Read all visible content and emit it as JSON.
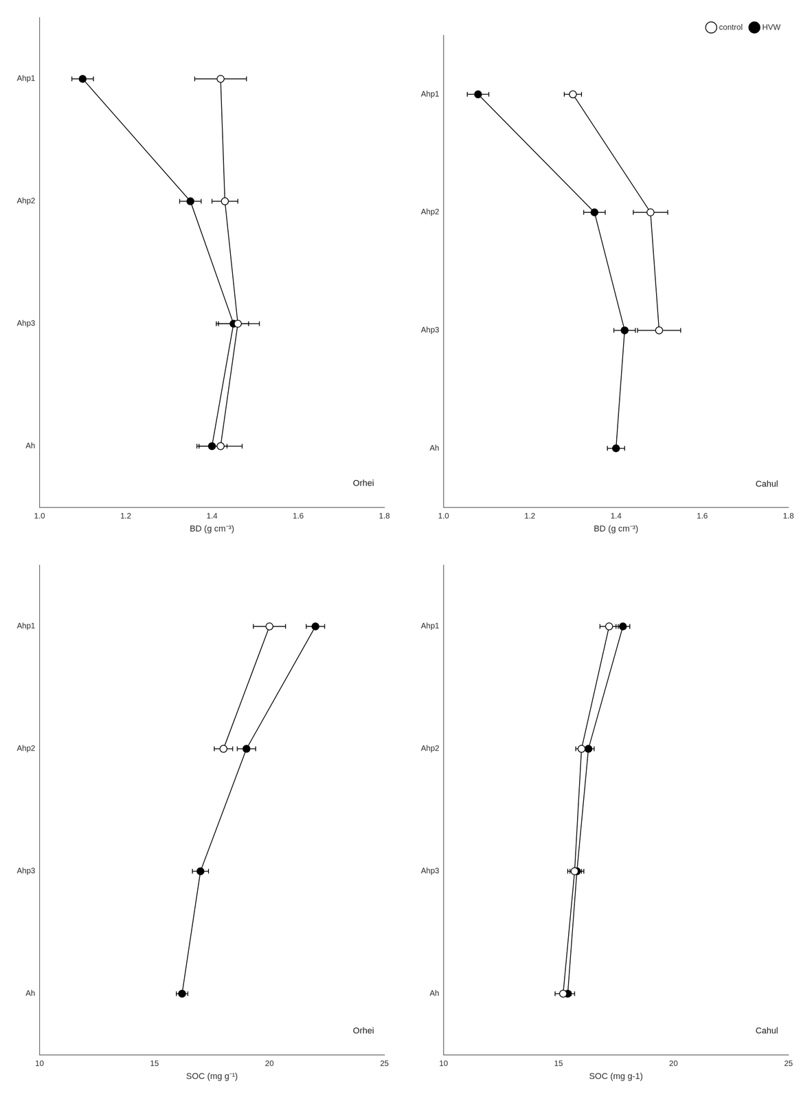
{
  "chart_data": [
    {
      "type": "line",
      "orientation": "horizontal",
      "grid": false,
      "categories": [
        "Ahp1",
        "Ahp2",
        "Ahp3",
        "Ah"
      ],
      "series": [
        {
          "name": "control",
          "color": "black",
          "marker": "circle-open",
          "line_style": "solid",
          "values": [
            1.42,
            1.43,
            1.46,
            1.42
          ],
          "errors": [
            0.06,
            0.03,
            0.05,
            0.05
          ]
        },
        {
          "name": "HVW",
          "color": "black",
          "marker": "circle",
          "line_style": "solid",
          "values": [
            1.1,
            1.35,
            1.45,
            1.4
          ],
          "errors": [
            0.025,
            0.025,
            0.035,
            0.035
          ]
        }
      ],
      "xlim": [
        1.0,
        1.8
      ],
      "xticks": [
        {
          "value": 1.0,
          "label": "1.0"
        },
        1.2,
        1.4,
        1.6,
        1.8
      ],
      "xlabel": "BD (g cm⁻³)",
      "annotation": "Orhei"
    },
    {
      "type": "line",
      "orientation": "horizontal",
      "grid": false,
      "legend": "upper right",
      "categories": [
        "Ahp1",
        "Ahp2",
        "Ahp3",
        "Ah"
      ],
      "series": [
        {
          "name": "control",
          "color": "black",
          "marker": "circle-open",
          "line_style": "solid",
          "values": [
            1.3,
            1.48,
            1.5,
            null
          ],
          "errors": [
            0.02,
            0.04,
            0.05,
            null
          ]
        },
        {
          "name": "HVW",
          "color": "black",
          "marker": "circle",
          "line_style": "solid",
          "values": [
            1.08,
            1.35,
            1.42,
            1.4
          ],
          "errors": [
            0.025,
            0.025,
            0.025,
            0.02
          ]
        }
      ],
      "xlim": [
        1.0,
        1.8
      ],
      "xticks": [
        {
          "value": 1.0,
          "label": "1.0"
        },
        1.2,
        1.4,
        1.6,
        1.8
      ],
      "xlabel": "BD (g cm⁻³)",
      "annotation": "Cahul"
    },
    {
      "type": "line",
      "orientation": "horizontal",
      "grid": false,
      "categories": [
        "Ahp1",
        "Ahp2",
        "Ahp3",
        "Ah"
      ],
      "series": [
        {
          "name": "control",
          "color": "black",
          "marker": "circle-open",
          "line_style": "solid",
          "values": [
            20.0,
            18.0,
            null,
            null
          ],
          "errors": [
            0.7,
            0.4,
            null,
            null
          ]
        },
        {
          "name": "HVW",
          "color": "black",
          "marker": "circle",
          "line_style": "solid",
          "values": [
            22.0,
            19.0,
            17.0,
            16.2
          ],
          "errors": [
            0.4,
            0.4,
            0.35,
            0.25
          ]
        }
      ],
      "xlim": [
        10,
        25
      ],
      "xticks": [
        10,
        15,
        20,
        25
      ],
      "xlabel": "SOC (mg g⁻¹)",
      "annotation": "Orhei"
    },
    {
      "type": "line",
      "orientation": "horizontal",
      "grid": false,
      "categories": [
        "Ahp1",
        "Ahp2",
        "Ahp3",
        "Ah"
      ],
      "series": [
        {
          "name": "control",
          "color": "black",
          "marker": "circle-open",
          "line_style": "solid",
          "values": [
            17.2,
            16.0,
            15.7,
            15.2
          ],
          "errors": [
            0.4,
            0.25,
            0.3,
            0.35
          ]
        },
        {
          "name": "HVW",
          "color": "black",
          "marker": "circle",
          "line_style": "solid",
          "values": [
            17.8,
            16.3,
            15.8,
            15.4
          ],
          "errors": [
            0.3,
            0.25,
            0.3,
            0.3
          ]
        }
      ],
      "xlim": [
        10,
        25
      ],
      "xticks": [
        10,
        15,
        20,
        25
      ],
      "xlabel": "SOC (mg g-1)",
      "annotation": "Cahul"
    }
  ]
}
